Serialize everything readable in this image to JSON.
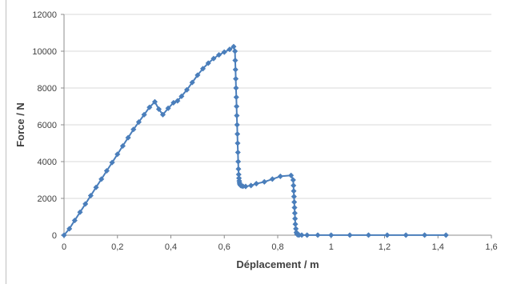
{
  "chart_data": {
    "type": "scatter",
    "mode": "lines+markers",
    "title": "",
    "xlabel": "Déplacement / m",
    "ylabel": "Force / N",
    "xlim": [
      0,
      1.6
    ],
    "ylim": [
      0,
      12000
    ],
    "xticks": [
      "0",
      "0,2",
      "0,4",
      "0,6",
      "0,8",
      "1",
      "1,2",
      "1,4",
      "1,6"
    ],
    "yticks": [
      "0",
      "2000",
      "4000",
      "6000",
      "8000",
      "10000",
      "12000"
    ],
    "grid": "horizontal",
    "legend": "none",
    "color": "#4a7ebb",
    "marker": "diamond",
    "series": [
      {
        "x": [
          0,
          0.02,
          0.04,
          0.06,
          0.08,
          0.1,
          0.12,
          0.14,
          0.16,
          0.18,
          0.2,
          0.22,
          0.24,
          0.26,
          0.28,
          0.3,
          0.32,
          0.34,
          0.355,
          0.37,
          0.39,
          0.41,
          0.425,
          0.44,
          0.46,
          0.48,
          0.5,
          0.52,
          0.54,
          0.56,
          0.58,
          0.6,
          0.62,
          0.635,
          0.64,
          0.641,
          0.642,
          0.643,
          0.644,
          0.645,
          0.646,
          0.647,
          0.648,
          0.649,
          0.65,
          0.651,
          0.652,
          0.653,
          0.654,
          0.655,
          0.656,
          0.657,
          0.658,
          0.66,
          0.662,
          0.665,
          0.67,
          0.68,
          0.7,
          0.72,
          0.75,
          0.78,
          0.81,
          0.85,
          0.858,
          0.859,
          0.86,
          0.861,
          0.862,
          0.863,
          0.864,
          0.865,
          0.866,
          0.868,
          0.87,
          0.872,
          0.875,
          0.88,
          0.89,
          0.91,
          0.95,
          1.0,
          1.07,
          1.14,
          1.21,
          1.28,
          1.35,
          1.43
        ],
        "y": [
          0,
          350,
          800,
          1250,
          1700,
          2150,
          2600,
          3050,
          3500,
          3950,
          4400,
          4850,
          5300,
          5750,
          6150,
          6550,
          6950,
          7250,
          6850,
          6550,
          6900,
          7200,
          7300,
          7550,
          7900,
          8300,
          8700,
          9050,
          9350,
          9600,
          9800,
          9950,
          10100,
          10250,
          10000,
          9500,
          9000,
          8500,
          8000,
          7500,
          7000,
          6500,
          6000,
          5500,
          5000,
          4500,
          4000,
          3600,
          3300,
          3100,
          2950,
          2850,
          2780,
          2720,
          2700,
          2680,
          2660,
          2650,
          2700,
          2800,
          2900,
          3050,
          3200,
          3250,
          3000,
          2700,
          2400,
          2100,
          1800,
          1500,
          1200,
          900,
          600,
          350,
          150,
          60,
          20,
          10,
          5,
          5,
          5,
          5,
          5,
          5,
          5,
          5,
          5,
          5
        ]
      }
    ]
  }
}
